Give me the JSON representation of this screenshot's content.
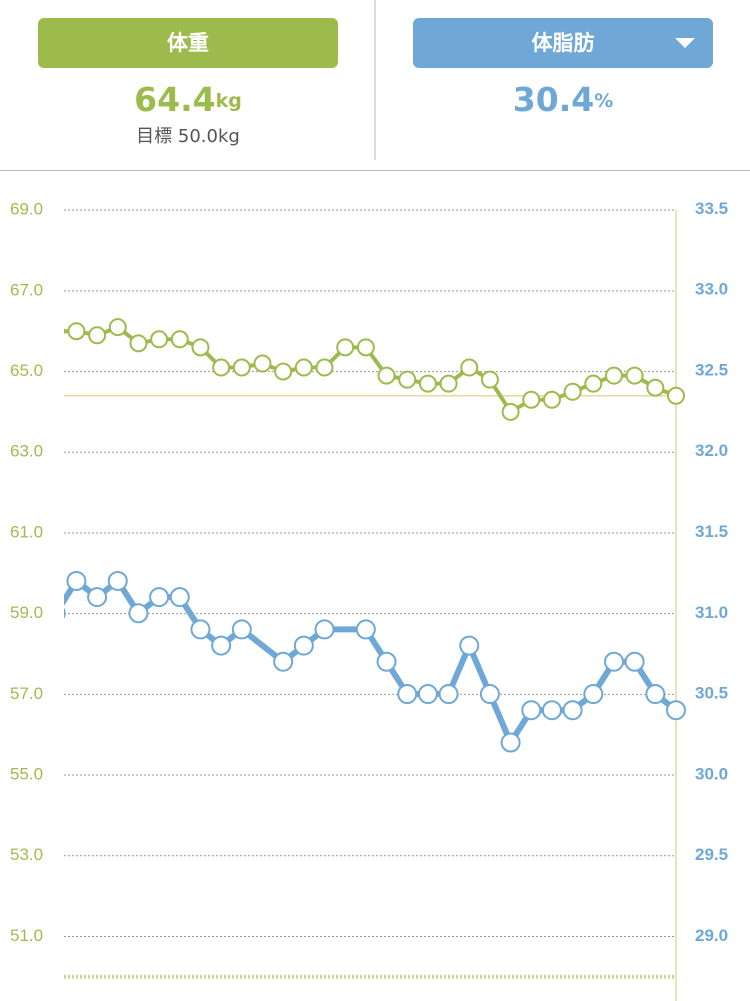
{
  "header": {
    "tabs": [
      {
        "label": "体重",
        "value": 64.4,
        "unit": "kg",
        "goal": "目標 50.0kg"
      },
      {
        "label": "体脂肪",
        "value": 30.4,
        "unit": "%"
      }
    ]
  },
  "chart_data": {
    "type": "line",
    "xlim": [
      -0.6,
      29
    ],
    "ylim": [
      49.4,
      69.5
    ],
    "yticks": [
      {
        "value": 51,
        "label": "51.0"
      },
      {
        "value": 53,
        "label": "53.0"
      },
      {
        "value": 55,
        "label": "55.0"
      },
      {
        "value": 57,
        "label": "57.0"
      },
      {
        "value": 59,
        "label": "59.0"
      },
      {
        "value": 61,
        "label": "61.0"
      },
      {
        "value": 63,
        "label": "63.0"
      },
      {
        "value": 65,
        "label": "65.0"
      },
      {
        "value": 67,
        "label": "67.0"
      },
      {
        "value": 69,
        "label": "69.0"
      }
    ],
    "y2lim": [
      28.6,
      33.62
    ],
    "y2ticks": [
      {
        "value": 29,
        "label": "29.0"
      },
      29.5,
      {
        "value": 30,
        "label": "30.0"
      },
      30.5,
      {
        "value": 31,
        "label": "31.0"
      },
      31.5,
      {
        "value": 32,
        "label": "32.0"
      },
      32.5,
      {
        "value": 33,
        "label": "33.0"
      },
      33.5
    ],
    "grid": true,
    "goal_line": 50,
    "series": [
      {
        "name": "体重",
        "color": "#9dbb4c",
        "x": [
          -1,
          0,
          1,
          2,
          3,
          4,
          5,
          6,
          7,
          8,
          9,
          10,
          11,
          12,
          13,
          14,
          15,
          16,
          17,
          18,
          19,
          20,
          21,
          22,
          23,
          24,
          25,
          26,
          27,
          28,
          29
        ],
        "values": [
          66.0,
          66.0,
          65.9,
          66.1,
          65.7,
          65.8,
          65.8,
          65.6,
          65.1,
          65.1,
          65.2,
          65.0,
          65.1,
          65.1,
          65.6,
          65.6,
          64.9,
          64.8,
          64.7,
          64.7,
          65.1,
          64.8,
          64.0,
          64.3,
          64.3,
          64.5,
          64.7,
          64.9,
          64.9,
          64.6,
          64.4
        ]
      },
      {
        "name": "体脂肪",
        "color": "#6fa8d6",
        "axis": "y2",
        "x": [
          -1,
          0,
          1,
          2,
          3,
          4,
          5,
          6,
          7,
          8,
          10,
          11,
          12,
          14,
          15,
          16,
          17,
          18,
          19,
          20,
          21,
          22,
          23,
          24,
          25,
          26,
          27,
          28,
          29
        ],
        "values": [
          31.0,
          31.2,
          31.1,
          31.2,
          31.0,
          31.1,
          31.1,
          30.9,
          30.8,
          30.9,
          30.7,
          30.8,
          30.9,
          30.9,
          30.7,
          30.5,
          30.5,
          30.5,
          30.8,
          30.5,
          30.2,
          30.4,
          30.4,
          30.4,
          30.5,
          30.7,
          30.7,
          30.5,
          30.4
        ]
      }
    ]
  }
}
